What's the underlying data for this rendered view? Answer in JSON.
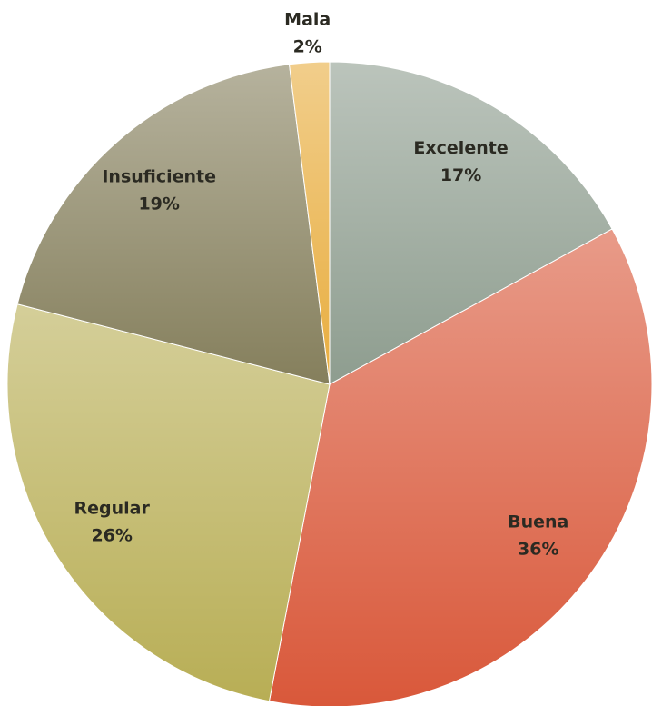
{
  "chart_data": {
    "type": "pie",
    "categories": [
      "Excelente",
      "Buena",
      "Regular",
      "Insuficiente",
      "Mala"
    ],
    "values": [
      17,
      36,
      26,
      19,
      2
    ],
    "value_labels": [
      "17%",
      "36%",
      "26%",
      "19%",
      "2%"
    ],
    "colors": [
      "#8e9d8f",
      "#d9583a",
      "#b8ae55",
      "#857f5c",
      "#e8ad3e"
    ]
  }
}
